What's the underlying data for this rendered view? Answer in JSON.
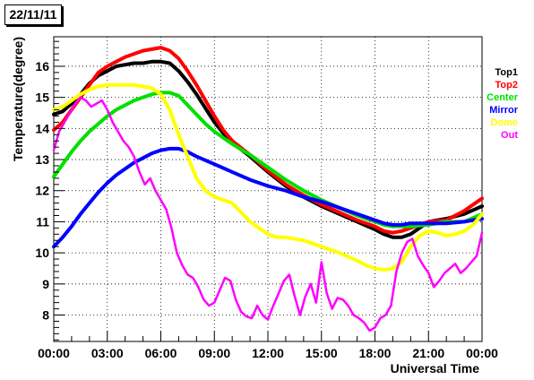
{
  "title": "22/11/11",
  "chart_data": {
    "type": "line",
    "xlabel": "Universal Time",
    "ylabel": "Temperature(degree)",
    "xlim": [
      0,
      24
    ],
    "ylim": [
      7.15,
      16.95
    ],
    "x_tick_labels": [
      "00:00",
      "03:00",
      "06:00",
      "09:00",
      "12:00",
      "15:00",
      "18:00",
      "21:00",
      "00:00"
    ],
    "x_tick_values": [
      0,
      3,
      6,
      9,
      12,
      15,
      18,
      21,
      24
    ],
    "y_tick_values": [
      8,
      9,
      10,
      11,
      12,
      13,
      14,
      15,
      16
    ],
    "y_tick_labels": [
      "8",
      "9",
      "10",
      "11",
      "12",
      "13",
      "14",
      "15",
      "16"
    ],
    "grid": "horizontal dotted",
    "legend": "right",
    "series": [
      {
        "name": "Top1",
        "color": "#000000",
        "x": [
          0,
          0.5,
          1,
          1.5,
          2,
          2.5,
          3,
          3.5,
          4,
          4.5,
          5,
          5.5,
          6,
          6.5,
          7,
          7.5,
          8,
          8.5,
          9,
          9.5,
          10,
          11,
          12,
          13,
          14,
          15,
          16,
          17,
          18,
          18.5,
          19,
          19.5,
          20,
          20.5,
          21,
          22,
          23,
          24
        ],
        "y": [
          14.45,
          14.55,
          14.8,
          15.1,
          15.45,
          15.7,
          15.85,
          16.0,
          16.05,
          16.1,
          16.1,
          16.15,
          16.15,
          16.1,
          15.85,
          15.5,
          15.1,
          14.65,
          14.2,
          13.85,
          13.55,
          13.1,
          12.6,
          12.15,
          11.8,
          11.5,
          11.25,
          11.0,
          10.75,
          10.6,
          10.5,
          10.5,
          10.6,
          10.8,
          11.0,
          11.1,
          11.25,
          11.5
        ]
      },
      {
        "name": "Top2",
        "color": "#ff0000",
        "x": [
          0,
          0.5,
          1,
          1.5,
          2,
          2.5,
          3,
          3.5,
          4,
          4.5,
          5,
          5.5,
          6,
          6.5,
          7,
          7.5,
          8,
          8.5,
          9,
          9.5,
          10,
          11,
          12,
          13,
          14,
          15,
          16,
          17,
          18,
          18.5,
          19,
          19.5,
          20,
          21,
          22,
          23,
          24
        ],
        "y": [
          13.95,
          14.2,
          14.6,
          15.0,
          15.4,
          15.8,
          16.0,
          16.15,
          16.3,
          16.4,
          16.5,
          16.55,
          16.6,
          16.5,
          16.25,
          15.85,
          15.4,
          14.9,
          14.4,
          13.95,
          13.6,
          13.15,
          12.65,
          12.2,
          11.85,
          11.55,
          11.3,
          11.05,
          10.85,
          10.7,
          10.65,
          10.7,
          10.8,
          11.0,
          11.05,
          11.35,
          11.75
        ]
      },
      {
        "name": "Center",
        "color": "#00e000",
        "x": [
          0,
          0.5,
          1,
          1.5,
          2,
          2.5,
          3,
          3.5,
          4,
          4.5,
          5,
          5.5,
          6,
          6.5,
          7,
          7.5,
          8,
          8.5,
          9,
          9.5,
          10,
          11,
          12,
          13,
          14,
          15,
          16,
          17,
          18,
          18.5,
          19,
          19.5,
          20,
          21,
          22,
          23,
          24
        ],
        "y": [
          12.45,
          12.85,
          13.25,
          13.6,
          13.9,
          14.15,
          14.4,
          14.6,
          14.75,
          14.9,
          15.0,
          15.1,
          15.15,
          15.15,
          15.05,
          14.75,
          14.45,
          14.15,
          13.9,
          13.7,
          13.5,
          13.15,
          12.75,
          12.35,
          12.0,
          11.7,
          11.45,
          11.2,
          11.0,
          10.9,
          10.85,
          10.85,
          10.85,
          10.9,
          11.0,
          11.0,
          11.25
        ]
      },
      {
        "name": "Mirror",
        "color": "#0000ff",
        "x": [
          0,
          0.5,
          1,
          1.5,
          2,
          2.5,
          3,
          3.5,
          4,
          4.5,
          5,
          5.5,
          6,
          6.5,
          7,
          7.5,
          8,
          9,
          10,
          11,
          12,
          13,
          14,
          15,
          16,
          17,
          18,
          18.5,
          19,
          19.5,
          20,
          21,
          22,
          23,
          24
        ],
        "y": [
          10.2,
          10.5,
          10.85,
          11.25,
          11.6,
          11.95,
          12.25,
          12.5,
          12.7,
          12.9,
          13.05,
          13.2,
          13.3,
          13.35,
          13.35,
          13.25,
          13.1,
          12.85,
          12.6,
          12.35,
          12.15,
          12.0,
          11.8,
          11.65,
          11.45,
          11.25,
          11.05,
          10.95,
          10.9,
          10.9,
          10.95,
          10.95,
          10.95,
          11.0,
          11.1
        ]
      },
      {
        "name": "Dome",
        "color": "#ffff00",
        "x": [
          0,
          0.5,
          1,
          1.5,
          2,
          2.5,
          3,
          3.5,
          4,
          4.5,
          5,
          5.5,
          6,
          6.5,
          7,
          7.5,
          8,
          8.5,
          9,
          9.5,
          10,
          10.5,
          11,
          11.5,
          12,
          12.5,
          13,
          14,
          15,
          16,
          17,
          17.5,
          18,
          18.5,
          19,
          19.5,
          20,
          20.5,
          21,
          21.5,
          22,
          22.5,
          23,
          23.5,
          24
        ],
        "y": [
          14.6,
          14.7,
          14.9,
          15.1,
          15.25,
          15.35,
          15.4,
          15.4,
          15.4,
          15.4,
          15.35,
          15.3,
          15.1,
          14.6,
          13.8,
          13.1,
          12.4,
          12.0,
          11.8,
          11.7,
          11.6,
          11.3,
          11.0,
          10.8,
          10.6,
          10.5,
          10.5,
          10.4,
          10.2,
          10.0,
          9.75,
          9.6,
          9.5,
          9.45,
          9.5,
          9.7,
          10.2,
          10.55,
          10.7,
          10.65,
          10.55,
          10.6,
          10.7,
          10.9,
          11.25
        ]
      },
      {
        "name": "Out",
        "color": "#ff00ff",
        "x": [
          0,
          0.3,
          0.6,
          0.9,
          1.2,
          1.5,
          1.8,
          2.1,
          2.4,
          2.7,
          3,
          3.3,
          3.6,
          3.9,
          4.2,
          4.5,
          4.8,
          5.1,
          5.4,
          5.7,
          6,
          6.3,
          6.6,
          6.9,
          7.2,
          7.5,
          7.8,
          8.1,
          8.4,
          8.7,
          9,
          9.3,
          9.6,
          9.9,
          10.2,
          10.5,
          10.8,
          11.1,
          11.4,
          11.7,
          12,
          12.3,
          12.6,
          12.9,
          13.2,
          13.5,
          13.8,
          14.1,
          14.4,
          14.7,
          15,
          15.3,
          15.6,
          15.9,
          16.2,
          16.5,
          16.8,
          17.1,
          17.4,
          17.7,
          18,
          18.3,
          18.6,
          18.9,
          19.2,
          19.5,
          19.8,
          20.1,
          20.4,
          20.7,
          21,
          21.3,
          21.6,
          21.9,
          22.2,
          22.5,
          22.8,
          23.1,
          23.4,
          23.7,
          24
        ],
        "y": [
          13.3,
          13.9,
          14.2,
          14.5,
          14.8,
          15.0,
          14.9,
          14.7,
          14.8,
          14.9,
          14.6,
          14.2,
          13.9,
          13.6,
          13.4,
          13.1,
          12.6,
          12.2,
          12.4,
          12.0,
          11.7,
          11.4,
          10.8,
          10.0,
          9.6,
          9.3,
          9.2,
          8.9,
          8.5,
          8.3,
          8.4,
          8.8,
          9.2,
          9.1,
          8.5,
          8.1,
          7.95,
          7.9,
          8.3,
          8.0,
          7.85,
          8.3,
          8.7,
          9.1,
          9.3,
          8.6,
          8.0,
          8.6,
          9.0,
          8.4,
          9.7,
          8.7,
          8.2,
          8.55,
          8.5,
          8.3,
          8.0,
          7.9,
          7.75,
          7.5,
          7.6,
          7.9,
          8.0,
          8.3,
          9.4,
          10.0,
          10.35,
          10.45,
          9.9,
          9.6,
          9.35,
          8.9,
          9.1,
          9.35,
          9.5,
          9.65,
          9.35,
          9.5,
          9.7,
          9.9,
          10.65
        ]
      }
    ]
  }
}
